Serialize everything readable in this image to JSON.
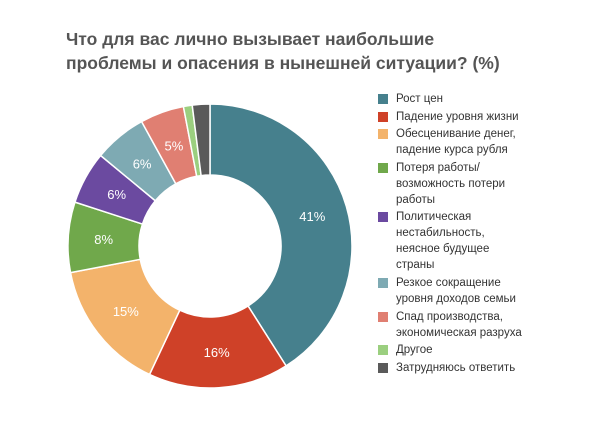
{
  "chart_data": {
    "type": "pie",
    "variant": "donut",
    "title_lines": [
      "Что для вас лично вызывает наибольшие",
      "проблемы и опасения в нынешней ситуации? (%)"
    ],
    "start_angle_deg": 0,
    "direction": "clockwise",
    "data_label_suffix": "%",
    "legend_position": "right",
    "slices": [
      {
        "label_lines": [
          "Рост цен"
        ],
        "value": 41,
        "color": "#46808d",
        "show_label": true,
        "label_color": "#ffffff"
      },
      {
        "label_lines": [
          "Падение уровня жизни"
        ],
        "value": 16,
        "color": "#cf4128",
        "show_label": true,
        "label_color": "#ffffff"
      },
      {
        "label_lines": [
          "Обесценивание денег,",
          "падение курса рубля"
        ],
        "value": 15,
        "color": "#f3b36b",
        "show_label": true,
        "label_color": "#ffffff"
      },
      {
        "label_lines": [
          "Потеря работы/",
          "возможность потери",
          "работы"
        ],
        "value": 8,
        "color": "#70a84b",
        "show_label": true,
        "label_color": "#ffffff"
      },
      {
        "label_lines": [
          "Политическая",
          "нестабильность,",
          "неясное будущее",
          "страны"
        ],
        "value": 6,
        "color": "#6b4aa0",
        "show_label": true,
        "label_color": "#ffffff"
      },
      {
        "label_lines": [
          "Резкое сокращение",
          "уровня доходов семьи"
        ],
        "value": 6,
        "color": "#7eaab3",
        "show_label": true,
        "label_color": "#ffffff"
      },
      {
        "label_lines": [
          "Спад производства,",
          "экономическая разруха"
        ],
        "value": 5,
        "color": "#e07f72",
        "show_label": true,
        "label_color": "#ffffff"
      },
      {
        "label_lines": [
          "Другое"
        ],
        "value": 1,
        "color": "#9bcf7f",
        "show_label": false,
        "label_color": "#ffffff"
      },
      {
        "label_lines": [
          "Затрудняюсь ответить"
        ],
        "value": 2,
        "color": "#5a5a5a",
        "show_label": false,
        "label_color": "#ffffff"
      }
    ]
  }
}
